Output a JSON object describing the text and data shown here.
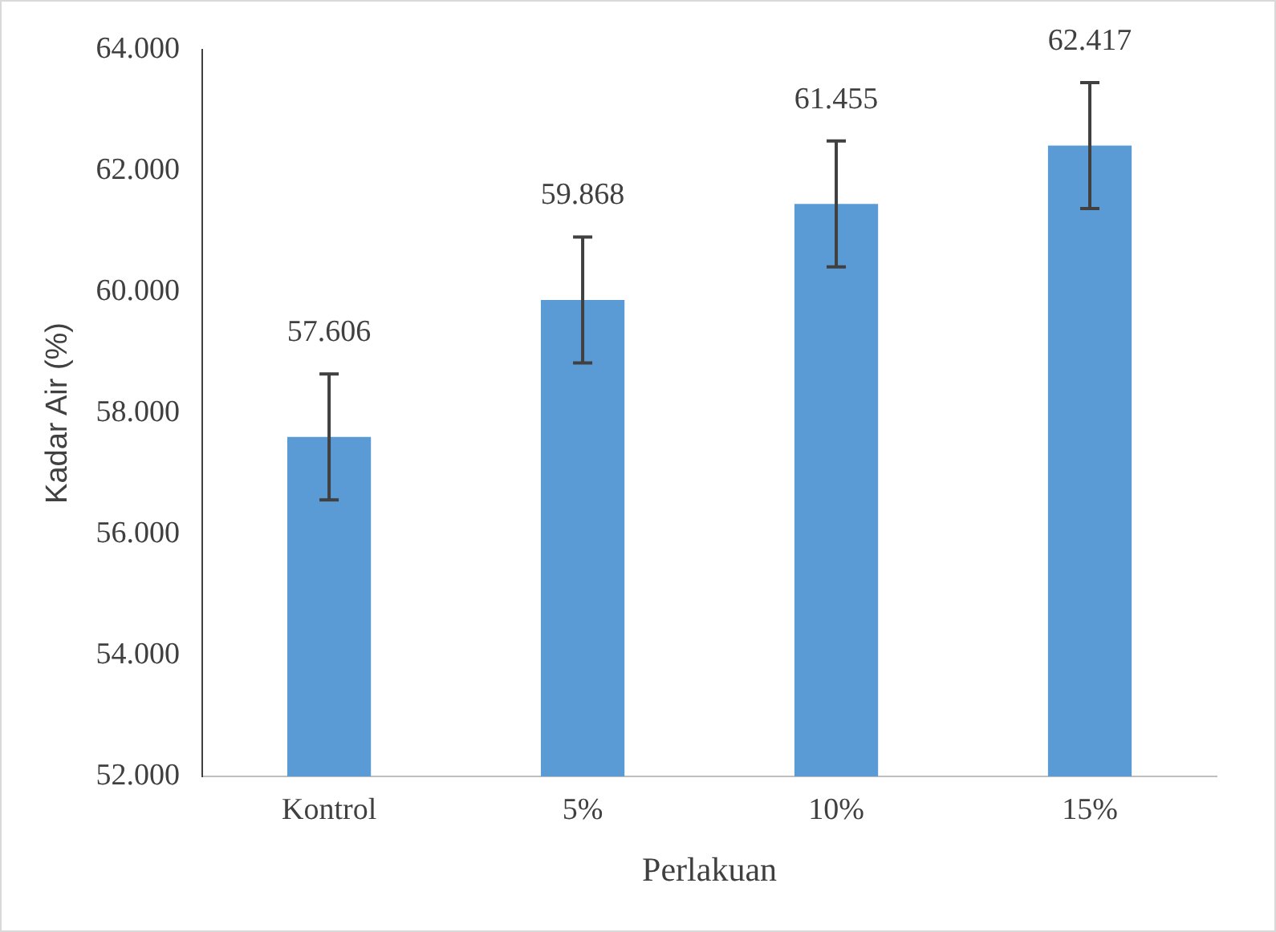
{
  "chart_data": {
    "type": "bar",
    "xlabel": "Perlakuan",
    "ylabel": "Kadar Air (%)",
    "categories": [
      "Kontrol",
      "5%",
      "10%",
      "15%"
    ],
    "values": [
      57.606,
      59.868,
      61.455,
      62.417
    ],
    "errors": [
      1.04,
      1.04,
      1.04,
      1.04
    ],
    "color": "#5b9bd5",
    "data_labels": true,
    "grid": false,
    "legend": false,
    "ylim": [
      52,
      64
    ],
    "yticks": [
      {
        "value": 52,
        "label": "52.000"
      },
      {
        "value": 54,
        "label": "54.000"
      },
      {
        "value": 56,
        "label": "56.000"
      },
      {
        "value": 58,
        "label": "58.000"
      },
      {
        "value": 60,
        "label": "60.000"
      },
      {
        "value": 62,
        "label": "62.000"
      },
      {
        "value": 64,
        "label": "64.000"
      }
    ]
  }
}
